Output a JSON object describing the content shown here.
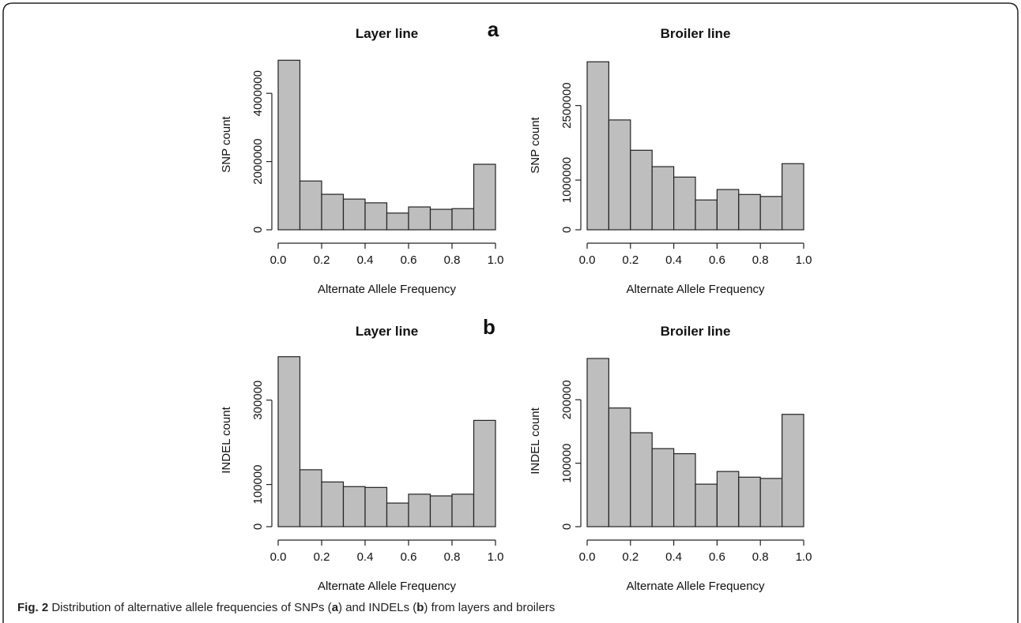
{
  "chart_data": [
    {
      "type": "histogram",
      "title": "Layer line",
      "xlabel": "Alternate Allele Frequency",
      "ylabel": "SNP count",
      "bins": [
        0,
        0.1,
        0.2,
        0.3,
        0.4,
        0.5,
        0.6,
        0.7,
        0.8,
        0.9,
        1
      ],
      "values": [
        4970000,
        1430000,
        1040000,
        900000,
        790000,
        490000,
        670000,
        600000,
        620000,
        1920000
      ],
      "color": "#bebebe",
      "xlim": [
        0,
        1
      ],
      "ylim": [
        0,
        5000000
      ],
      "xticks": [
        {
          "value": 0,
          "label": "0.0"
        },
        0.2,
        0.4,
        0.6,
        0.8,
        {
          "value": 1,
          "label": "1.0"
        }
      ],
      "yticks": [
        0,
        2000000,
        4000000
      ]
    },
    {
      "type": "histogram",
      "title": "Broiler line",
      "xlabel": "Alternate Allele Frequency",
      "ylabel": "SNP count",
      "bins": [
        0,
        0.1,
        0.2,
        0.3,
        0.4,
        0.5,
        0.6,
        0.7,
        0.8,
        0.9,
        1
      ],
      "values": [
        3380000,
        2210000,
        1600000,
        1270000,
        1060000,
        600000,
        810000,
        710000,
        670000,
        1330000
      ],
      "color": "#bebebe",
      "xlim": [
        0,
        1
      ],
      "ylim": [
        0,
        3400000
      ],
      "xticks": [
        {
          "value": 0,
          "label": "0.0"
        },
        0.2,
        0.4,
        0.6,
        0.8,
        {
          "value": 1,
          "label": "1.0"
        }
      ],
      "yticks": [
        0,
        1000000,
        2500000
      ]
    },
    {
      "type": "histogram",
      "title": "Layer line",
      "xlabel": "Alternate Allele Frequency",
      "ylabel": "INDEL count",
      "bins": [
        0,
        0.1,
        0.2,
        0.3,
        0.4,
        0.5,
        0.6,
        0.7,
        0.8,
        0.9,
        1
      ],
      "values": [
        403000,
        135000,
        106000,
        95000,
        93000,
        56000,
        77000,
        73000,
        77000,
        252000
      ],
      "color": "#bebebe",
      "xlim": [
        0,
        1
      ],
      "ylim": [
        0,
        410000
      ],
      "xticks": [
        {
          "value": 0,
          "label": "0.0"
        },
        0.2,
        0.4,
        0.6,
        0.8,
        {
          "value": 1,
          "label": "1.0"
        }
      ],
      "yticks": [
        0,
        100000,
        300000
      ]
    },
    {
      "type": "histogram",
      "title": "Broiler line",
      "xlabel": "Alternate Allele Frequency",
      "ylabel": "INDEL count",
      "bins": [
        0,
        0.1,
        0.2,
        0.3,
        0.4,
        0.5,
        0.6,
        0.7,
        0.8,
        0.9,
        1
      ],
      "values": [
        265000,
        187000,
        148000,
        123000,
        115000,
        67000,
        87000,
        78000,
        76000,
        177000
      ],
      "color": "#bebebe",
      "xlim": [
        0,
        1
      ],
      "ylim": [
        0,
        270000
      ],
      "xticks": [
        {
          "value": 0,
          "label": "0.0"
        },
        0.2,
        0.4,
        0.6,
        0.8,
        {
          "value": 1,
          "label": "1.0"
        }
      ],
      "yticks": [
        0,
        100000,
        200000
      ]
    }
  ],
  "figure": {
    "panel_labels": [
      "a",
      "b"
    ],
    "caption": [
      "Fig. 2",
      " Distribution of alternative allele frequencies of SNPs (",
      "a",
      ") and INDELs (",
      "b",
      ") from layers and broilers"
    ]
  }
}
